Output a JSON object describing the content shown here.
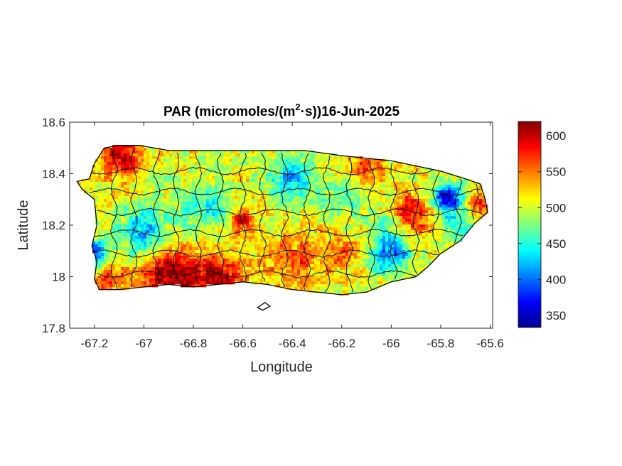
{
  "chart_data": {
    "type": "heatmap",
    "title_main": "PAR (micromoles/(m",
    "title_sup": "2",
    "title_rest": "·s))16-Jun-2025",
    "xlabel": "Longitude",
    "ylabel": "Latitude",
    "xlim": [
      -67.3,
      -65.59
    ],
    "ylim": [
      17.8,
      18.6
    ],
    "xticks": [
      "-67.2",
      "-67",
      "-66.8",
      "-66.6",
      "-66.4",
      "-66.2",
      "-66",
      "-65.8",
      "-65.6"
    ],
    "xtick_values": [
      -67.2,
      -67.0,
      -66.8,
      -66.6,
      -66.4,
      -66.2,
      -66.0,
      -65.8,
      -65.6
    ],
    "yticks": [
      "18.6",
      "18.4",
      "18.2",
      "18",
      "17.8"
    ],
    "ytick_values": [
      18.6,
      18.4,
      18.2,
      18.0,
      17.8
    ],
    "colorbar": {
      "colormap": "jet",
      "clim": [
        333,
        620
      ],
      "ticks": [
        "600",
        "550",
        "500",
        "450",
        "400",
        "350"
      ],
      "tick_values": [
        600,
        550,
        500,
        450,
        400,
        350
      ]
    },
    "island_outline": [
      [
        -67.27,
        18.37
      ],
      [
        -67.22,
        18.38
      ],
      [
        -67.2,
        18.44
      ],
      [
        -67.16,
        18.5
      ],
      [
        -67.1,
        18.51
      ],
      [
        -67.02,
        18.51
      ],
      [
        -66.9,
        18.49
      ],
      [
        -66.8,
        18.49
      ],
      [
        -66.65,
        18.49
      ],
      [
        -66.5,
        18.49
      ],
      [
        -66.35,
        18.49
      ],
      [
        -66.2,
        18.47
      ],
      [
        -66.1,
        18.46
      ],
      [
        -66.0,
        18.45
      ],
      [
        -65.9,
        18.43
      ],
      [
        -65.8,
        18.41
      ],
      [
        -65.7,
        18.38
      ],
      [
        -65.64,
        18.36
      ],
      [
        -65.62,
        18.3
      ],
      [
        -65.61,
        18.25
      ],
      [
        -65.66,
        18.21
      ],
      [
        -65.72,
        18.14
      ],
      [
        -65.8,
        18.09
      ],
      [
        -65.85,
        18.04
      ],
      [
        -65.9,
        18.0
      ],
      [
        -66.0,
        17.98
      ],
      [
        -66.1,
        17.94
      ],
      [
        -66.2,
        17.93
      ],
      [
        -66.3,
        17.94
      ],
      [
        -66.4,
        17.95
      ],
      [
        -66.5,
        17.97
      ],
      [
        -66.6,
        17.98
      ],
      [
        -66.7,
        17.97
      ],
      [
        -66.8,
        17.96
      ],
      [
        -66.9,
        17.97
      ],
      [
        -67.0,
        17.96
      ],
      [
        -67.1,
        17.95
      ],
      [
        -67.18,
        17.95
      ],
      [
        -67.2,
        17.99
      ],
      [
        -67.19,
        18.06
      ],
      [
        -67.21,
        18.12
      ],
      [
        -67.19,
        18.2
      ],
      [
        -67.2,
        18.3
      ],
      [
        -67.25,
        18.34
      ]
    ],
    "small_island": [
      [
        -66.54,
        17.88
      ],
      [
        -66.51,
        17.9
      ],
      [
        -66.49,
        17.885
      ],
      [
        -66.52,
        17.87
      ]
    ],
    "field_sources": [
      {
        "lon": -67.1,
        "lat": 18.47,
        "value": 610,
        "radius_deg": 0.08
      },
      {
        "lon": -66.9,
        "lat": 18.0,
        "value": 615,
        "radius_deg": 0.12
      },
      {
        "lon": -66.7,
        "lat": 17.99,
        "value": 605,
        "radius_deg": 0.1
      },
      {
        "lon": -67.15,
        "lat": 18.0,
        "value": 585,
        "radius_deg": 0.07
      },
      {
        "lon": -66.6,
        "lat": 18.22,
        "value": 590,
        "radius_deg": 0.05
      },
      {
        "lon": -66.1,
        "lat": 18.42,
        "value": 575,
        "radius_deg": 0.07
      },
      {
        "lon": -65.92,
        "lat": 18.24,
        "value": 600,
        "radius_deg": 0.08
      },
      {
        "lon": -65.65,
        "lat": 18.28,
        "value": 575,
        "radius_deg": 0.05
      },
      {
        "lon": -66.4,
        "lat": 18.05,
        "value": 560,
        "radius_deg": 0.12
      },
      {
        "lon": -66.2,
        "lat": 18.1,
        "value": 545,
        "radius_deg": 0.1
      },
      {
        "lon": -65.77,
        "lat": 18.3,
        "value": 345,
        "radius_deg": 0.06
      },
      {
        "lon": -67.2,
        "lat": 18.08,
        "value": 390,
        "radius_deg": 0.07
      },
      {
        "lon": -67.0,
        "lat": 18.17,
        "value": 420,
        "radius_deg": 0.1
      },
      {
        "lon": -66.0,
        "lat": 18.09,
        "value": 400,
        "radius_deg": 0.08
      },
      {
        "lon": -66.4,
        "lat": 18.38,
        "value": 425,
        "radius_deg": 0.09
      },
      {
        "lon": -66.75,
        "lat": 18.27,
        "value": 450,
        "radius_deg": 0.1
      },
      {
        "lon": -66.2,
        "lat": 18.28,
        "value": 470,
        "radius_deg": 0.09
      },
      {
        "lon": -66.0,
        "lat": 18.2,
        "value": 460,
        "radius_deg": 0.07
      },
      {
        "lon": -65.72,
        "lat": 18.18,
        "value": 470,
        "radius_deg": 0.07
      },
      {
        "lon": -66.85,
        "lat": 18.4,
        "value": 500,
        "radius_deg": 0.08
      }
    ]
  }
}
